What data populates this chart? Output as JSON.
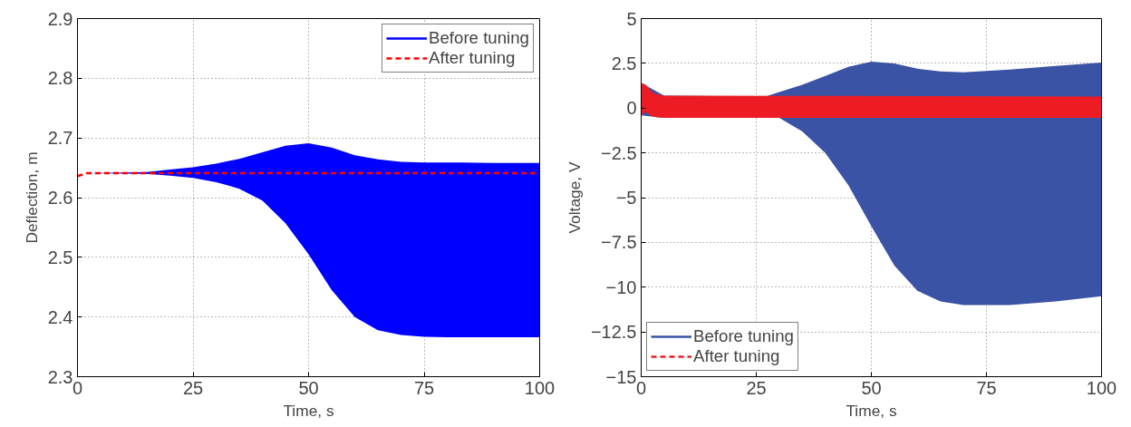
{
  "chart_data": [
    {
      "type": "line",
      "xlabel": "Time, s",
      "ylabel": "Deflection, m",
      "xlim": [
        0,
        100
      ],
      "ylim": [
        2.3,
        2.9
      ],
      "xticks": [
        0,
        25,
        50,
        75,
        100
      ],
      "yticks": [
        2.3,
        2.4,
        2.5,
        2.6,
        2.7,
        2.8,
        2.9
      ],
      "grid": true,
      "legend": "top right",
      "series": [
        {
          "name": "Before tuning",
          "color": "#0000ff",
          "line_style": "solid",
          "x": [
            0,
            2,
            15,
            20,
            25,
            30,
            35,
            40,
            45,
            50,
            55,
            60,
            65,
            70,
            75,
            80,
            90,
            100
          ],
          "values": [
            null,
            null,
            null,
            null,
            null,
            null,
            null,
            null,
            null,
            null,
            null,
            null,
            null,
            null,
            null,
            null,
            null,
            null
          ],
          "upper": [
            2.636,
            2.641,
            2.643,
            2.647,
            2.651,
            2.657,
            2.665,
            2.676,
            2.687,
            2.691,
            2.684,
            2.671,
            2.664,
            2.66,
            2.659,
            2.659,
            2.658,
            2.658
          ],
          "lower": [
            2.636,
            2.641,
            2.64,
            2.637,
            2.633,
            2.626,
            2.615,
            2.595,
            2.557,
            2.505,
            2.445,
            2.4,
            2.378,
            2.37,
            2.367,
            2.366,
            2.366,
            2.366
          ]
        },
        {
          "name": "After tuning",
          "color": "#ff0000",
          "line_style": "dashed",
          "x": [
            0,
            2,
            100
          ],
          "values": [
            2.636,
            2.641,
            2.641
          ]
        }
      ]
    },
    {
      "type": "line",
      "xlabel": "Time, s",
      "ylabel": "Voltage, V",
      "xlim": [
        0,
        100
      ],
      "ylim": [
        -15,
        5
      ],
      "xticks": [
        0,
        25,
        50,
        75,
        100
      ],
      "yticks": [
        {
          "value": -15,
          "label": "−15"
        },
        {
          "value": -12.5,
          "label": "−12.5"
        },
        {
          "value": -10,
          "label": "−10"
        },
        {
          "value": -7.5,
          "label": "−7.5"
        },
        {
          "value": -5,
          "label": "−5"
        },
        {
          "value": -2.5,
          "label": "−2.5"
        },
        0,
        2.5,
        5
      ],
      "grid": true,
      "legend": "bottom left",
      "series": [
        {
          "name": "Before tuning",
          "color": "#3a53a4",
          "line_style": "solid",
          "x": [
            0,
            5,
            27,
            30,
            35,
            40,
            45,
            50,
            55,
            60,
            65,
            70,
            80,
            90,
            100
          ],
          "values": [
            null,
            null,
            null,
            null,
            null,
            null,
            null,
            null,
            null,
            null,
            null,
            null,
            null,
            null,
            null
          ],
          "upper": [
            1.4,
            0.7,
            0.65,
            0.9,
            1.3,
            1.8,
            2.3,
            2.6,
            2.5,
            2.2,
            2.05,
            2.0,
            2.15,
            2.35,
            2.55
          ],
          "lower": [
            -0.4,
            -0.55,
            -0.55,
            -0.55,
            -1.3,
            -2.5,
            -4.3,
            -6.6,
            -8.8,
            -10.2,
            -10.8,
            -11.0,
            -11.0,
            -10.8,
            -10.5
          ]
        },
        {
          "name": "After tuning",
          "color": "#ed1c24",
          "line_style": "dashed",
          "x": [
            0,
            1,
            2,
            3,
            5,
            100
          ],
          "values": [
            null,
            null,
            null,
            null,
            null,
            null
          ],
          "upper": [
            1.4,
            1.3,
            1.0,
            0.8,
            0.7,
            0.65
          ],
          "lower": [
            -0.4,
            -0.2,
            -0.4,
            -0.5,
            -0.55,
            -0.55
          ]
        }
      ]
    }
  ]
}
